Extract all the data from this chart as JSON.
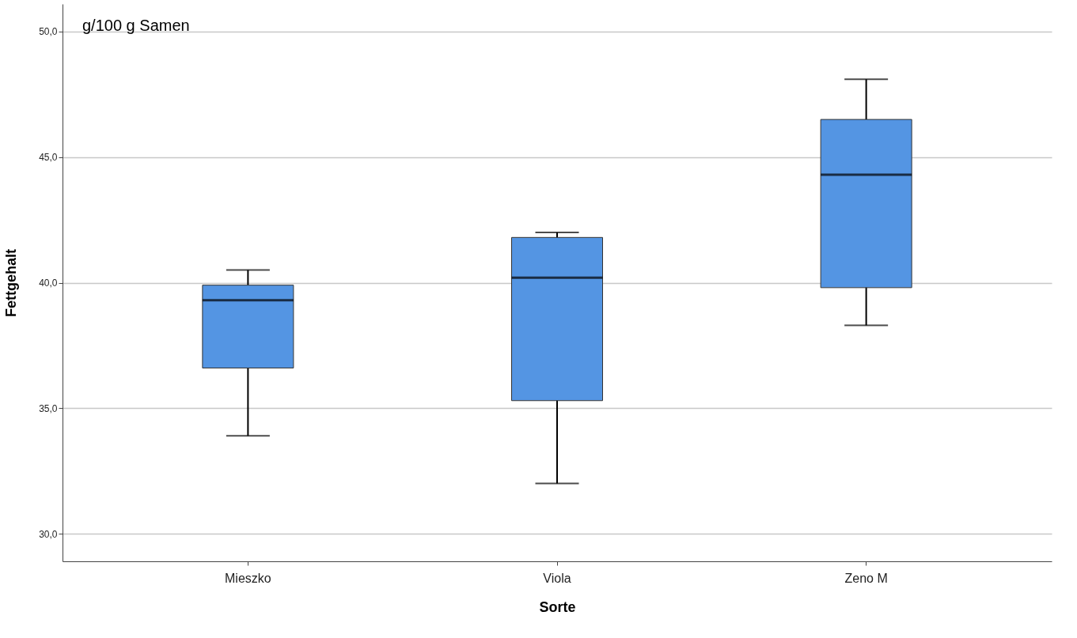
{
  "chart_data": {
    "type": "box",
    "xlabel": "Sorte",
    "ylabel": "Fettgehalt",
    "categories": [
      "Mieszko",
      "Viola",
      "Zeno M"
    ],
    "boxes": [
      {
        "low": 33.9,
        "q1": 36.6,
        "median": 39.3,
        "q3": 39.9,
        "high": 40.5
      },
      {
        "low": 32.0,
        "q1": 35.3,
        "median": 40.2,
        "q3": 41.8,
        "high": 42.0
      },
      {
        "low": 38.3,
        "q1": 39.8,
        "median": 44.3,
        "q3": 46.5,
        "high": 48.1
      }
    ],
    "color": "#5495e3",
    "ylim": [
      28.9,
      51.1
    ],
    "yticks": [
      {
        "value": 30,
        "label": "30,0"
      },
      {
        "value": 35,
        "label": "35,0"
      },
      {
        "value": 40,
        "label": "40,0"
      },
      {
        "value": 45,
        "label": "45,0"
      },
      {
        "value": 50,
        "label": "50,0"
      }
    ],
    "grid": "y",
    "annotations": [
      "g/100 g Samen"
    ]
  }
}
